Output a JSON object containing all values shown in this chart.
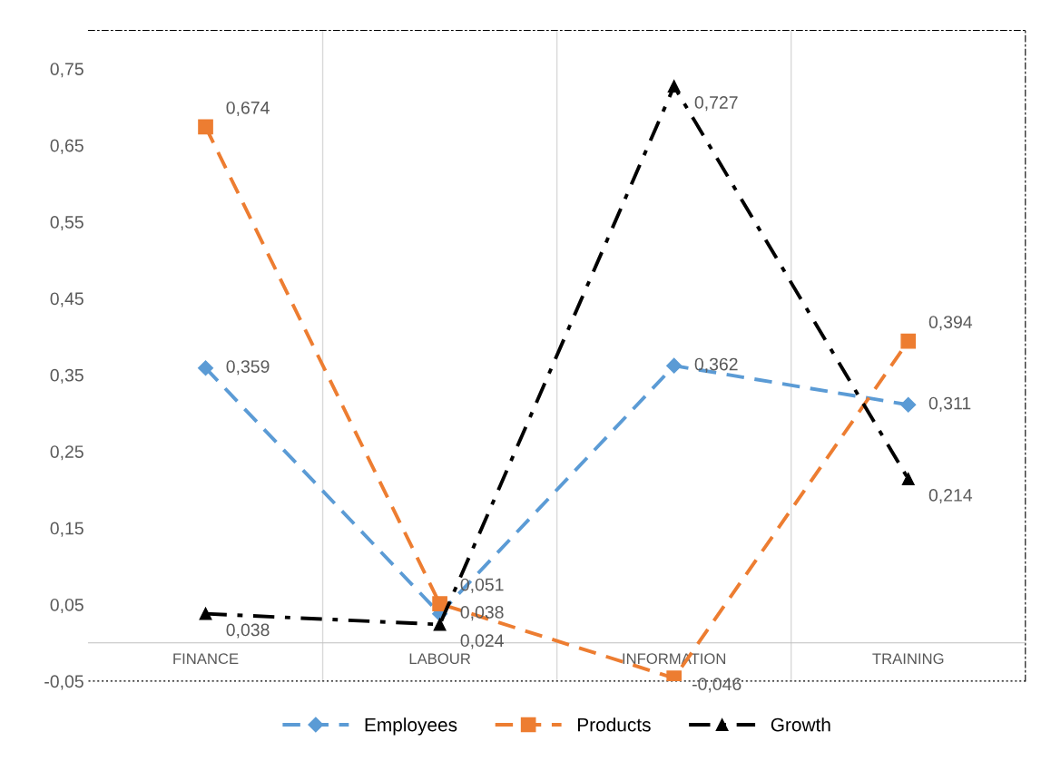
{
  "chart_data": {
    "type": "line",
    "categories": [
      "FINANCE",
      "LABOUR",
      "INFORMATION",
      "TRAINING"
    ],
    "series": [
      {
        "name": "Employees",
        "color": "#5b9bd5",
        "values": [
          0.359,
          0.038,
          0.362,
          0.311
        ],
        "marker": "diamond",
        "line_style": "dashed",
        "value_labels": [
          "0,359",
          "0,038",
          "0,362",
          "0,311"
        ]
      },
      {
        "name": "Products",
        "color": "#ed7d31",
        "values": [
          0.674,
          0.051,
          -0.046,
          0.394
        ],
        "marker": "square",
        "line_style": "dashed",
        "value_labels": [
          "0,674",
          "0,051",
          "-0,046",
          "0,394"
        ]
      },
      {
        "name": "Growth",
        "color": "#000000",
        "values": [
          0.038,
          0.024,
          0.727,
          0.214
        ],
        "marker": "triangle",
        "line_style": "dashdot",
        "value_labels": [
          "0,038",
          "0,024",
          "0,727",
          "0,214"
        ]
      }
    ],
    "ylim": [
      -0.05,
      0.8
    ],
    "yticks": [
      {
        "value": -0.05,
        "label": "-0,05"
      },
      {
        "value": 0.05,
        "label": "0,05"
      },
      {
        "value": 0.15,
        "label": "0,15"
      },
      {
        "value": 0.25,
        "label": "0,25"
      },
      {
        "value": 0.35,
        "label": "0,35"
      },
      {
        "value": 0.45,
        "label": "0,45"
      },
      {
        "value": 0.55,
        "label": "0,55"
      },
      {
        "value": 0.65,
        "label": "0,65"
      },
      {
        "value": 0.75,
        "label": "0,75"
      }
    ],
    "grid": "x",
    "legend": "bottom"
  }
}
